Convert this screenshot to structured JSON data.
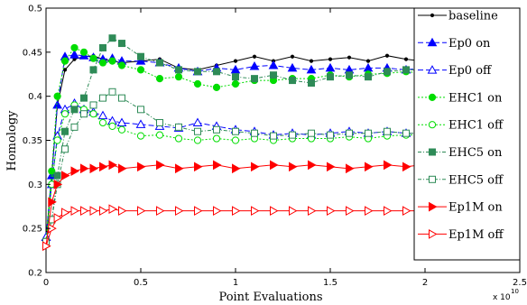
{
  "chart_data": {
    "type": "line",
    "xlabel": "Point Evaluations",
    "ylabel": "Homology",
    "x_multiplier": "x 10",
    "x_multiplier_exp": "10",
    "xlim": [
      0,
      25000000000
    ],
    "ylim": [
      0.2,
      0.5
    ],
    "x_ticks": [
      0,
      5000000000,
      10000000000,
      15000000000,
      20000000000,
      25000000000
    ],
    "x_tick_labels": [
      "0",
      "0.5",
      "1",
      "1.5",
      "2",
      "2.5"
    ],
    "y_ticks": [
      0.2,
      0.25,
      0.3,
      0.35,
      0.4,
      0.45,
      0.5
    ],
    "y_tick_labels": [
      "0.2",
      "0.25",
      "0.3",
      "0.35",
      "0.4",
      "0.45",
      "0.5"
    ],
    "grid": false,
    "legend_position": "right",
    "series": [
      {
        "name": "baseline",
        "color": "#000000",
        "dash": "",
        "marker": "dot",
        "fill": true,
        "x": [
          0,
          300000000,
          600000000,
          1000000000,
          1500000000,
          2000000000,
          2500000000,
          3000000000,
          3500000000,
          4000000000,
          5000000000,
          6000000000,
          7000000000,
          8000000000,
          9000000000,
          10000000000,
          11000000000,
          12000000000,
          13000000000,
          14000000000,
          15000000000,
          16000000000,
          17000000000,
          18000000000,
          19000000000,
          19800000000
        ],
        "y": [
          0.235,
          0.31,
          0.39,
          0.43,
          0.442,
          0.445,
          0.446,
          0.442,
          0.44,
          0.438,
          0.44,
          0.442,
          0.432,
          0.43,
          0.435,
          0.44,
          0.445,
          0.44,
          0.445,
          0.44,
          0.442,
          0.444,
          0.44,
          0.446,
          0.442,
          0.44
        ]
      },
      {
        "name": "Ep0 on",
        "color": "#0000ff",
        "dash": "6,3",
        "marker": "triangle",
        "fill": true,
        "x": [
          0,
          300000000,
          600000000,
          1000000000,
          1500000000,
          2000000000,
          2500000000,
          3000000000,
          3500000000,
          4000000000,
          5000000000,
          6000000000,
          7000000000,
          8000000000,
          9000000000,
          10000000000,
          11000000000,
          12000000000,
          13000000000,
          14000000000,
          15000000000,
          16000000000,
          17000000000,
          18000000000,
          19000000000,
          19800000000
        ],
        "y": [
          0.24,
          0.31,
          0.39,
          0.445,
          0.447,
          0.446,
          0.444,
          0.442,
          0.443,
          0.44,
          0.44,
          0.438,
          0.432,
          0.428,
          0.432,
          0.43,
          0.434,
          0.435,
          0.432,
          0.43,
          0.432,
          0.43,
          0.432,
          0.432,
          0.43,
          0.432
        ]
      },
      {
        "name": "Ep0 off",
        "color": "#0000ff",
        "dash": "6,3",
        "marker": "triangle",
        "fill": false,
        "x": [
          0,
          300000000,
          600000000,
          1000000000,
          1500000000,
          2000000000,
          2500000000,
          3000000000,
          3500000000,
          4000000000,
          5000000000,
          6000000000,
          7000000000,
          8000000000,
          9000000000,
          10000000000,
          11000000000,
          12000000000,
          13000000000,
          14000000000,
          15000000000,
          16000000000,
          17000000000,
          18000000000,
          19000000000,
          19800000000
        ],
        "y": [
          0.24,
          0.3,
          0.355,
          0.385,
          0.392,
          0.385,
          0.382,
          0.378,
          0.372,
          0.37,
          0.368,
          0.366,
          0.364,
          0.37,
          0.366,
          0.362,
          0.36,
          0.356,
          0.358,
          0.356,
          0.358,
          0.36,
          0.358,
          0.36,
          0.358,
          0.358
        ]
      },
      {
        "name": "EHC1 on",
        "color": "#00dd00",
        "dash": "2,2",
        "marker": "circle",
        "fill": true,
        "x": [
          0,
          300000000,
          600000000,
          1000000000,
          1500000000,
          2000000000,
          2500000000,
          3000000000,
          3500000000,
          4000000000,
          5000000000,
          6000000000,
          7000000000,
          8000000000,
          9000000000,
          10000000000,
          11000000000,
          12000000000,
          13000000000,
          14000000000,
          15000000000,
          16000000000,
          17000000000,
          18000000000,
          19000000000,
          19800000000
        ],
        "y": [
          0.235,
          0.315,
          0.4,
          0.44,
          0.455,
          0.45,
          0.443,
          0.438,
          0.44,
          0.435,
          0.43,
          0.42,
          0.422,
          0.414,
          0.41,
          0.414,
          0.418,
          0.418,
          0.42,
          0.42,
          0.424,
          0.422,
          0.425,
          0.426,
          0.428,
          0.426
        ]
      },
      {
        "name": "EHC1 off",
        "color": "#00dd00",
        "dash": "2,2",
        "marker": "circle",
        "fill": false,
        "x": [
          0,
          300000000,
          600000000,
          1000000000,
          1500000000,
          2000000000,
          2500000000,
          3000000000,
          3500000000,
          4000000000,
          5000000000,
          6000000000,
          7000000000,
          8000000000,
          9000000000,
          10000000000,
          11000000000,
          12000000000,
          13000000000,
          14000000000,
          15000000000,
          16000000000,
          17000000000,
          18000000000,
          19000000000,
          19800000000
        ],
        "y": [
          0.235,
          0.3,
          0.35,
          0.38,
          0.39,
          0.385,
          0.38,
          0.37,
          0.366,
          0.362,
          0.355,
          0.356,
          0.352,
          0.35,
          0.352,
          0.35,
          0.352,
          0.35,
          0.352,
          0.352,
          0.352,
          0.354,
          0.352,
          0.355,
          0.356,
          0.356
        ]
      },
      {
        "name": "EHC5 on",
        "color": "#2e8b57",
        "dash": "4,2,1,2",
        "marker": "square",
        "fill": true,
        "x": [
          0,
          300000000,
          600000000,
          1000000000,
          1500000000,
          2000000000,
          2500000000,
          3000000000,
          3500000000,
          4000000000,
          5000000000,
          6000000000,
          7000000000,
          8000000000,
          9000000000,
          10000000000,
          11000000000,
          12000000000,
          13000000000,
          14000000000,
          15000000000,
          16000000000,
          17000000000,
          18000000000,
          19000000000,
          19800000000
        ],
        "y": [
          0.235,
          0.26,
          0.31,
          0.36,
          0.385,
          0.398,
          0.43,
          0.455,
          0.466,
          0.46,
          0.445,
          0.438,
          0.43,
          0.428,
          0.428,
          0.422,
          0.42,
          0.424,
          0.418,
          0.415,
          0.422,
          0.424,
          0.422,
          0.428,
          0.43,
          0.43
        ]
      },
      {
        "name": "EHC5 off",
        "color": "#2e8b57",
        "dash": "4,2,1,2",
        "marker": "square",
        "fill": false,
        "x": [
          0,
          300000000,
          600000000,
          1000000000,
          1500000000,
          2000000000,
          2500000000,
          3000000000,
          3500000000,
          4000000000,
          5000000000,
          6000000000,
          7000000000,
          8000000000,
          9000000000,
          10000000000,
          11000000000,
          12000000000,
          13000000000,
          14000000000,
          15000000000,
          16000000000,
          17000000000,
          18000000000,
          19000000000,
          19800000000
        ],
        "y": [
          0.235,
          0.26,
          0.3,
          0.34,
          0.365,
          0.38,
          0.39,
          0.398,
          0.405,
          0.398,
          0.385,
          0.37,
          0.365,
          0.36,
          0.362,
          0.36,
          0.358,
          0.355,
          0.356,
          0.358,
          0.356,
          0.358,
          0.358,
          0.36,
          0.358,
          0.358
        ]
      },
      {
        "name": "Ep1M on",
        "color": "#ff0000",
        "dash": "",
        "marker": "triangle-right",
        "fill": true,
        "x": [
          0,
          300000000,
          600000000,
          1000000000,
          1500000000,
          2000000000,
          2500000000,
          3000000000,
          3500000000,
          4000000000,
          5000000000,
          6000000000,
          7000000000,
          8000000000,
          9000000000,
          10000000000,
          11000000000,
          12000000000,
          13000000000,
          14000000000,
          15000000000,
          16000000000,
          17000000000,
          18000000000,
          19000000000,
          19800000000
        ],
        "y": [
          0.23,
          0.28,
          0.3,
          0.31,
          0.315,
          0.318,
          0.318,
          0.32,
          0.322,
          0.318,
          0.32,
          0.322,
          0.318,
          0.32,
          0.322,
          0.318,
          0.32,
          0.322,
          0.32,
          0.322,
          0.32,
          0.318,
          0.32,
          0.322,
          0.32,
          0.322
        ]
      },
      {
        "name": "Ep1M off",
        "color": "#ff0000",
        "dash": "",
        "marker": "triangle-right",
        "fill": false,
        "x": [
          0,
          300000000,
          600000000,
          1000000000,
          1500000000,
          2000000000,
          2500000000,
          3000000000,
          3500000000,
          4000000000,
          5000000000,
          6000000000,
          7000000000,
          8000000000,
          9000000000,
          10000000000,
          11000000000,
          12000000000,
          13000000000,
          14000000000,
          15000000000,
          16000000000,
          17000000000,
          18000000000,
          19000000000,
          19800000000
        ],
        "y": [
          0.23,
          0.25,
          0.262,
          0.268,
          0.27,
          0.27,
          0.27,
          0.27,
          0.272,
          0.27,
          0.27,
          0.27,
          0.27,
          0.27,
          0.27,
          0.27,
          0.27,
          0.27,
          0.27,
          0.27,
          0.27,
          0.27,
          0.27,
          0.27,
          0.27,
          0.27
        ]
      }
    ]
  }
}
